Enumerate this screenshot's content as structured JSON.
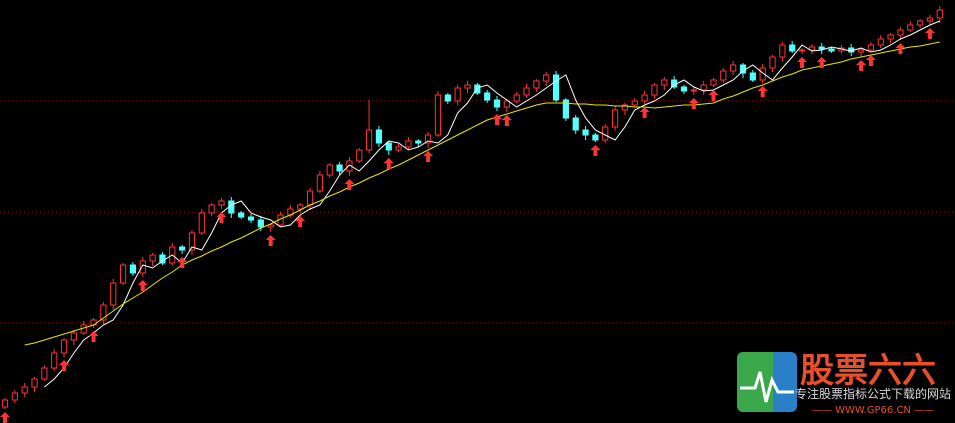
{
  "chart_data": {
    "type": "candlestick",
    "ylim": [
      0,
      423
    ],
    "hlines": [
      100,
      211,
      322
    ],
    "grid_color": "#b00000",
    "up_color": "#ff3333",
    "down_color": "#54ffff",
    "signal_color": "#ff3333",
    "open": [
      16,
      23,
      30,
      36,
      44,
      55,
      70,
      83,
      90,
      98,
      103,
      118,
      140,
      158,
      150,
      162,
      168,
      160,
      176,
      173,
      190,
      210,
      218,
      222,
      210,
      206,
      203,
      196,
      198,
      208,
      214,
      218,
      232,
      248,
      258,
      252,
      262,
      273,
      293,
      280,
      273,
      276,
      282,
      280,
      288,
      328,
      322,
      335,
      338,
      330,
      323,
      316,
      322,
      328,
      335,
      342,
      348,
      323,
      305,
      293,
      288,
      283,
      296,
      313,
      318,
      322,
      328,
      338,
      343,
      336,
      332,
      333,
      338,
      343,
      352,
      358,
      350,
      343,
      355,
      366,
      378,
      372,
      373,
      376,
      374,
      372,
      375,
      371,
      373,
      378,
      384,
      388,
      393,
      398,
      402,
      405
    ],
    "high": [
      25,
      33,
      40,
      46,
      58,
      74,
      85,
      93,
      102,
      105,
      121,
      144,
      160,
      161,
      166,
      170,
      171,
      180,
      178,
      193,
      214,
      220,
      225,
      226,
      212,
      209,
      207,
      200,
      211,
      218,
      220,
      235,
      252,
      260,
      261,
      266,
      275,
      323,
      297,
      282,
      279,
      286,
      284,
      291,
      332,
      330,
      338,
      342,
      340,
      333,
      327,
      324,
      331,
      339,
      344,
      351,
      352,
      325,
      308,
      297,
      290,
      299,
      317,
      320,
      325,
      332,
      340,
      346,
      347,
      338,
      336,
      342,
      345,
      355,
      362,
      360,
      353,
      359,
      368,
      381,
      382,
      375,
      379,
      380,
      376,
      378,
      379,
      375,
      381,
      388,
      390,
      396,
      402,
      404,
      408,
      417
    ],
    "low": [
      14,
      20,
      26,
      31,
      42,
      52,
      66,
      78,
      88,
      95,
      99,
      113,
      138,
      147,
      146,
      157,
      158,
      157,
      169,
      168,
      188,
      207,
      214,
      205,
      204,
      200,
      192,
      191,
      196,
      205,
      210,
      213,
      230,
      245,
      248,
      247,
      260,
      270,
      276,
      268,
      271,
      273,
      276,
      275,
      286,
      319,
      318,
      330,
      328,
      320,
      312,
      311,
      320,
      325,
      331,
      337,
      321,
      302,
      289,
      283,
      281,
      280,
      292,
      308,
      316,
      319,
      324,
      333,
      334,
      329,
      328,
      328,
      336,
      340,
      348,
      345,
      341,
      340,
      351,
      361,
      370,
      369,
      369,
      369,
      370,
      369,
      367,
      366,
      371,
      375,
      380,
      383,
      391,
      395,
      398,
      400
    ],
    "close": [
      23,
      30,
      36,
      44,
      55,
      70,
      83,
      90,
      98,
      103,
      118,
      140,
      158,
      150,
      162,
      168,
      160,
      176,
      173,
      190,
      210,
      218,
      222,
      210,
      206,
      203,
      196,
      198,
      208,
      214,
      218,
      232,
      248,
      258,
      252,
      262,
      273,
      293,
      280,
      273,
      276,
      282,
      280,
      288,
      328,
      322,
      335,
      338,
      330,
      323,
      316,
      322,
      328,
      335,
      342,
      348,
      323,
      305,
      293,
      288,
      283,
      296,
      313,
      318,
      322,
      328,
      338,
      343,
      336,
      332,
      333,
      338,
      343,
      352,
      358,
      350,
      343,
      355,
      366,
      378,
      372,
      373,
      376,
      374,
      372,
      375,
      371,
      373,
      378,
      384,
      388,
      393,
      398,
      402,
      405,
      413
    ],
    "lines": [
      {
        "color": "#ffffff",
        "values": [
          null,
          null,
          null,
          null,
          36,
          44,
          55,
          70,
          83,
          90,
          98,
          103,
          118,
          140,
          158,
          155,
          162,
          168,
          160,
          176,
          173,
          190,
          210,
          218,
          222,
          210,
          206,
          203,
          196,
          198,
          208,
          214,
          218,
          232,
          248,
          258,
          252,
          262,
          273,
          282,
          280,
          273,
          276,
          282,
          280,
          288,
          310,
          320,
          335,
          338,
          330,
          323,
          316,
          322,
          328,
          335,
          342,
          348,
          323,
          305,
          293,
          288,
          283,
          296,
          313,
          318,
          322,
          328,
          338,
          343,
          336,
          332,
          333,
          338,
          343,
          352,
          358,
          350,
          343,
          355,
          366,
          378,
          372,
          373,
          376,
          374,
          372,
          375,
          371,
          373,
          378,
          384,
          388,
          393,
          398,
          402
        ]
      },
      {
        "color": "#e8e800",
        "values": [
          null,
          null,
          78,
          80,
          83,
          86,
          89,
          92,
          95,
          98,
          105,
          112,
          119,
          125,
          131,
          138,
          145,
          151,
          158,
          163,
          167,
          172,
          176,
          181,
          185,
          190,
          195,
          199,
          204,
          208,
          213,
          218,
          222,
          227,
          231,
          236,
          240,
          245,
          249,
          254,
          258,
          263,
          268,
          273,
          278,
          283,
          288,
          293,
          298,
          303,
          306,
          309,
          312,
          315,
          318,
          320,
          320,
          320,
          319,
          319,
          318,
          318,
          317,
          317,
          316,
          316,
          315,
          316,
          317,
          318,
          318,
          319,
          320,
          324,
          327,
          331,
          335,
          338,
          342,
          346,
          349,
          353,
          355,
          357,
          359,
          361,
          364,
          366,
          368,
          370,
          372,
          374,
          376,
          377,
          379,
          381
        ]
      }
    ],
    "signals": [
      0,
      6,
      9,
      14,
      18,
      22,
      27,
      30,
      35,
      39,
      43,
      50,
      51,
      60,
      65,
      70,
      72,
      77,
      81,
      83,
      87,
      88,
      91,
      94
    ]
  },
  "watermark": {
    "title": "股票六六",
    "subtitle": "专注股票指标公式下载的网站",
    "url": "—— WWW.GP66.CN ——"
  }
}
